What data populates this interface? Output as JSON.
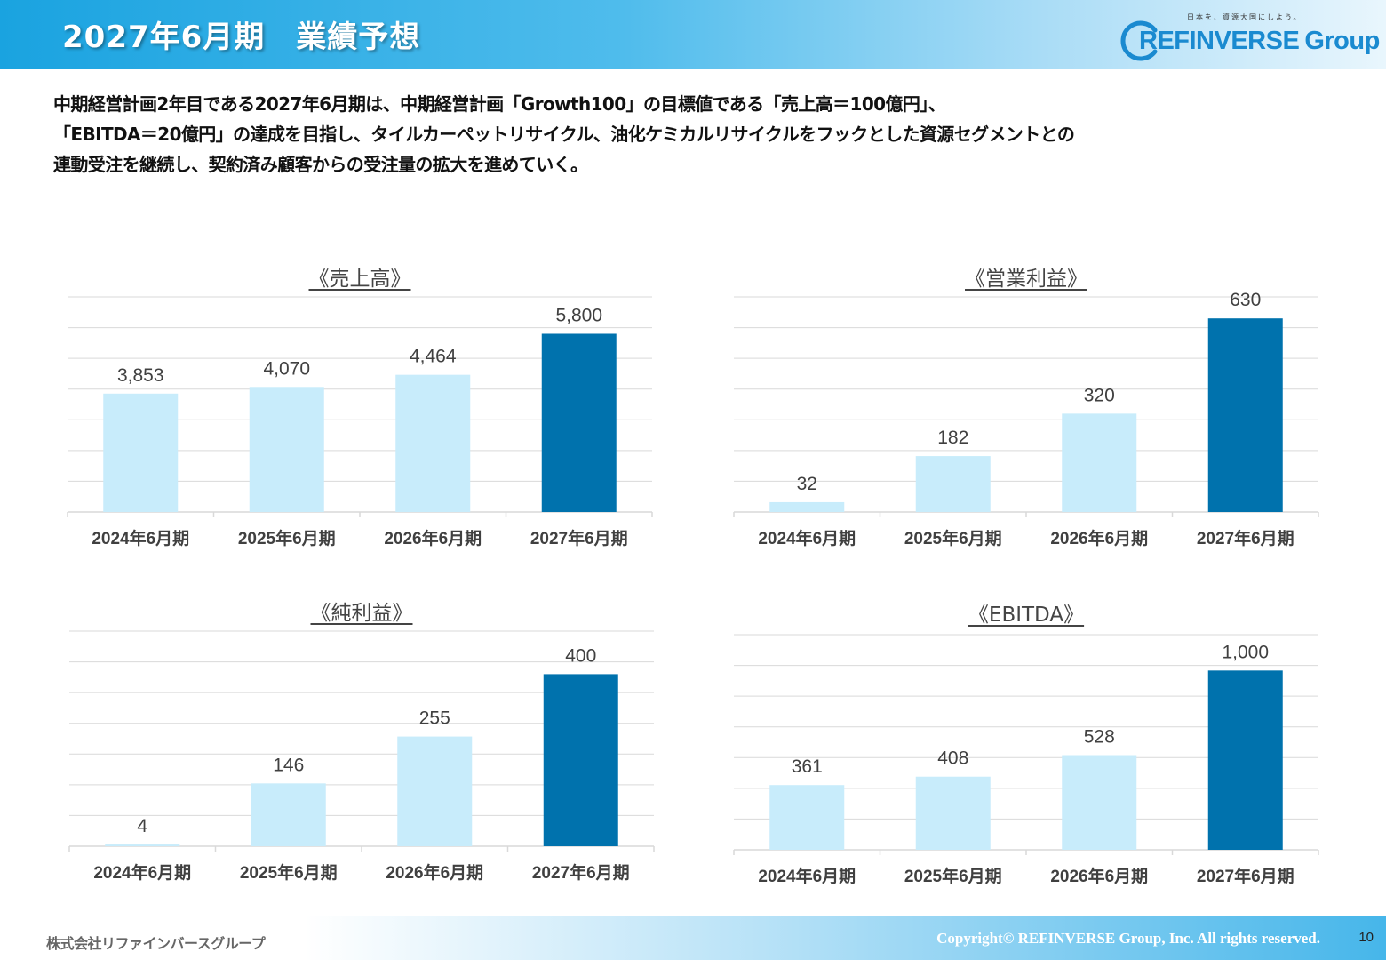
{
  "header": {
    "title": "2027年6月期　業績予想",
    "logo": {
      "tagline": "日本を、資源大国にしよう。",
      "brand": "REFINVERSE",
      "group": "Group",
      "color": "#1a8ad0"
    }
  },
  "lead": {
    "lines": [
      "中期経営計画2年目である2027年6月期は、中期経営計画「Growth100」の目標値である「売上高＝100億円」、",
      "「EBITDA＝20億円」の達成を目指し、タイルカーペットリサイクル、油化ケミカルリサイクルをフックとした資源セグメントとの",
      "連動受注を継続し、契約済み顧客からの受注量の拡大を進めていく。"
    ]
  },
  "colors": {
    "bar_light": "#c8ecfb",
    "bar_dark": "#0072ad",
    "gridline": "#d9d9d9"
  },
  "chart_data": [
    {
      "type": "bar",
      "title": "《売上高》",
      "categories": [
        "2024年6月期",
        "2025年6月期",
        "2026年6月期",
        "2027年6月期"
      ],
      "values": [
        3853,
        4070,
        4464,
        5800
      ],
      "labels": [
        "3,853",
        "4,070",
        "4,464",
        "5,800"
      ],
      "ylim": [
        0,
        7000
      ],
      "grid": true,
      "highlight_index": 3
    },
    {
      "type": "bar",
      "title": "《営業利益》",
      "categories": [
        "2024年6月期",
        "2025年6月期",
        "2026年6月期",
        "2027年6月期"
      ],
      "values": [
        32,
        182,
        320,
        630
      ],
      "labels": [
        "32",
        "182",
        "320",
        "630"
      ],
      "ylim": [
        0,
        700
      ],
      "grid": true,
      "highlight_index": 3
    },
    {
      "type": "bar",
      "title": "《純利益》",
      "categories": [
        "2024年6月期",
        "2025年6月期",
        "2026年6月期",
        "2027年6月期"
      ],
      "values": [
        4,
        146,
        255,
        400
      ],
      "labels": [
        "4",
        "146",
        "255",
        "400"
      ],
      "ylim": [
        0,
        500
      ],
      "grid": true,
      "highlight_index": 3
    },
    {
      "type": "bar",
      "title": "《EBITDA》",
      "categories": [
        "2024年6月期",
        "2025年6月期",
        "2026年6月期",
        "2027年6月期"
      ],
      "values": [
        361,
        408,
        528,
        1000
      ],
      "labels": [
        "361",
        "408",
        "528",
        "1,000"
      ],
      "ylim": [
        0,
        1200
      ],
      "grid": true,
      "highlight_index": 3
    }
  ],
  "footer": {
    "company": "株式会社リファインバースグループ",
    "copyright": "Copyright© REFINVERSE Group, Inc. All rights reserved.",
    "page": "10"
  }
}
